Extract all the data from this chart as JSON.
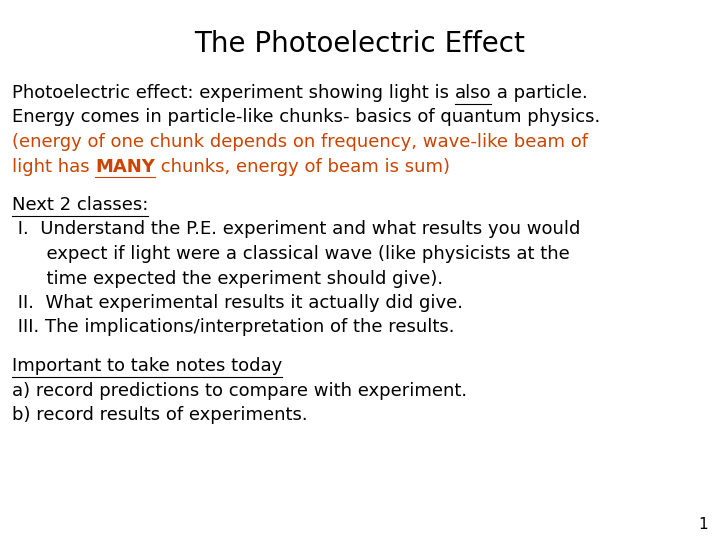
{
  "title": "The Photoelectric Effect",
  "background_color": "#ffffff",
  "title_fontsize": 20,
  "body_fontsize": 13,
  "black_color": "#000000",
  "orange_color": "#cc4400",
  "slide_number": "1",
  "lines": [
    {
      "parts": [
        {
          "t": "Photoelectric effect: experiment showing light is ",
          "c": "#000000",
          "bold": false,
          "underline": false
        },
        {
          "t": "also",
          "c": "#000000",
          "bold": false,
          "underline": true
        },
        {
          "t": " a particle.",
          "c": "#000000",
          "bold": false,
          "underline": false
        }
      ]
    },
    {
      "parts": [
        {
          "t": "Energy comes in particle-like chunks- basics of quantum physics.",
          "c": "#000000",
          "bold": false,
          "underline": false
        }
      ]
    },
    {
      "parts": [
        {
          "t": "(energy of one chunk depends on frequency, wave-like beam of",
          "c": "#cc4400",
          "bold": false,
          "underline": false
        }
      ]
    },
    {
      "parts": [
        {
          "t": "light has ",
          "c": "#cc4400",
          "bold": false,
          "underline": false
        },
        {
          "t": "MANY",
          "c": "#cc4400",
          "bold": true,
          "underline": true
        },
        {
          "t": " chunks, energy of beam is sum)",
          "c": "#cc4400",
          "bold": false,
          "underline": false
        }
      ]
    },
    {
      "spacer": true
    },
    {
      "parts": [
        {
          "t": "Next 2 classes:",
          "c": "#000000",
          "bold": false,
          "underline": true
        }
      ]
    },
    {
      "parts": [
        {
          "t": " I.  Understand the P.E. experiment and what results you would",
          "c": "#000000",
          "bold": false,
          "underline": false
        }
      ]
    },
    {
      "parts": [
        {
          "t": "      expect if light were a classical wave (like physicists at the",
          "c": "#000000",
          "bold": false,
          "underline": false
        }
      ]
    },
    {
      "parts": [
        {
          "t": "      time expected the experiment should give).",
          "c": "#000000",
          "bold": false,
          "underline": false
        }
      ]
    },
    {
      "parts": [
        {
          "t": " II.  What experimental results it actually did give.",
          "c": "#000000",
          "bold": false,
          "underline": false
        }
      ]
    },
    {
      "parts": [
        {
          "t": " III. The implications/interpretation of the results.",
          "c": "#000000",
          "bold": false,
          "underline": false
        }
      ]
    },
    {
      "spacer": true
    },
    {
      "parts": [
        {
          "t": "Important to take notes today",
          "c": "#000000",
          "bold": false,
          "underline": true
        }
      ]
    },
    {
      "parts": [
        {
          "t": "a) record predictions to compare with experiment.",
          "c": "#000000",
          "bold": false,
          "underline": false
        }
      ]
    },
    {
      "parts": [
        {
          "t": "b) record results of experiments.",
          "c": "#000000",
          "bold": false,
          "underline": false
        }
      ]
    }
  ]
}
